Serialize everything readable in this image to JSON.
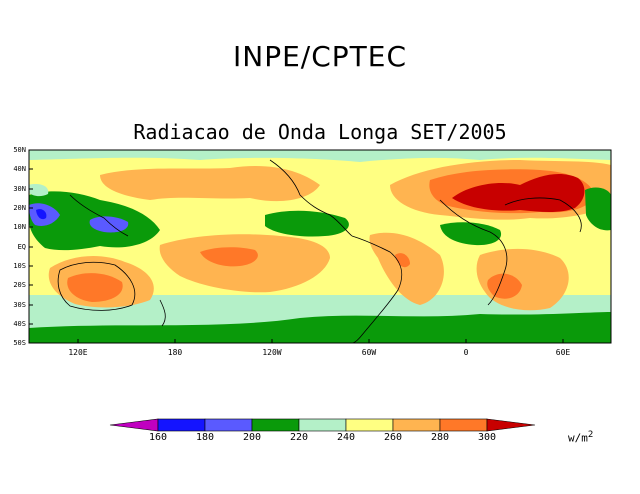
{
  "header": {
    "title": "INPE/CPTEC",
    "subtitle": "Radiacao de Onda Longa SET/2005"
  },
  "map": {
    "lat_labels": [
      "50N",
      "40N",
      "30N",
      "20N",
      "10N",
      "EQ",
      "10S",
      "20S",
      "30S",
      "40S",
      "50S"
    ],
    "lon_labels": [
      "120E",
      "180",
      "120W",
      "60W",
      "0",
      "60E"
    ]
  },
  "colorbar": {
    "labels": [
      "160",
      "180",
      "200",
      "220",
      "240",
      "260",
      "280",
      "300"
    ],
    "units_text": "w/m",
    "units_exp": "2",
    "colors": [
      "#c000c0",
      "#1414ff",
      "#5a5aff",
      "#0a9a0a",
      "#b4f0c8",
      "#ffff82",
      "#ffb450",
      "#ff7828",
      "#c80000"
    ]
  }
}
